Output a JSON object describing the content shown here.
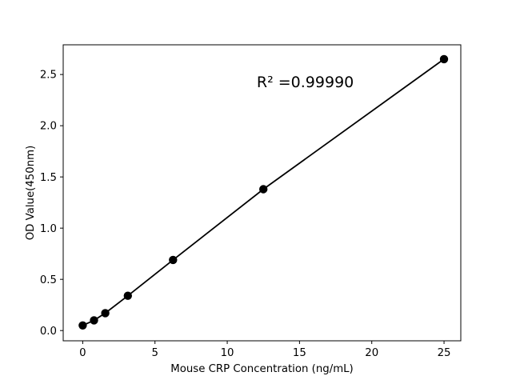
{
  "figure": {
    "background": "#ffffff",
    "foreground": "#000000"
  },
  "chart_data": {
    "type": "scatter",
    "title": "",
    "xlabel": "Mouse CRP Concentration (ng/mL)",
    "ylabel": "OD Value(450nm)",
    "series": [
      {
        "name": "standard-points",
        "x": [
          0,
          0.78,
          1.56,
          3.12,
          6.25,
          12.5,
          25
        ],
        "y": [
          0.05,
          0.1,
          0.17,
          0.34,
          0.69,
          1.38,
          2.65
        ],
        "marker": "circle",
        "marker_color": "#000000",
        "line": true,
        "line_color": "#000000"
      }
    ],
    "annotation": {
      "text": "R² =0.99990",
      "x": 15.4,
      "y": 2.43
    },
    "x_ticks": [
      0,
      5,
      10,
      15,
      20,
      25
    ],
    "y_ticks": [
      0.0,
      0.5,
      1.0,
      1.5,
      2.0,
      2.5
    ],
    "xlim": [
      -1.35,
      26.16
    ],
    "ylim": [
      -0.1,
      2.79
    ],
    "grid": false,
    "legend": null,
    "frame": "full-box",
    "tick_direction": "out"
  }
}
